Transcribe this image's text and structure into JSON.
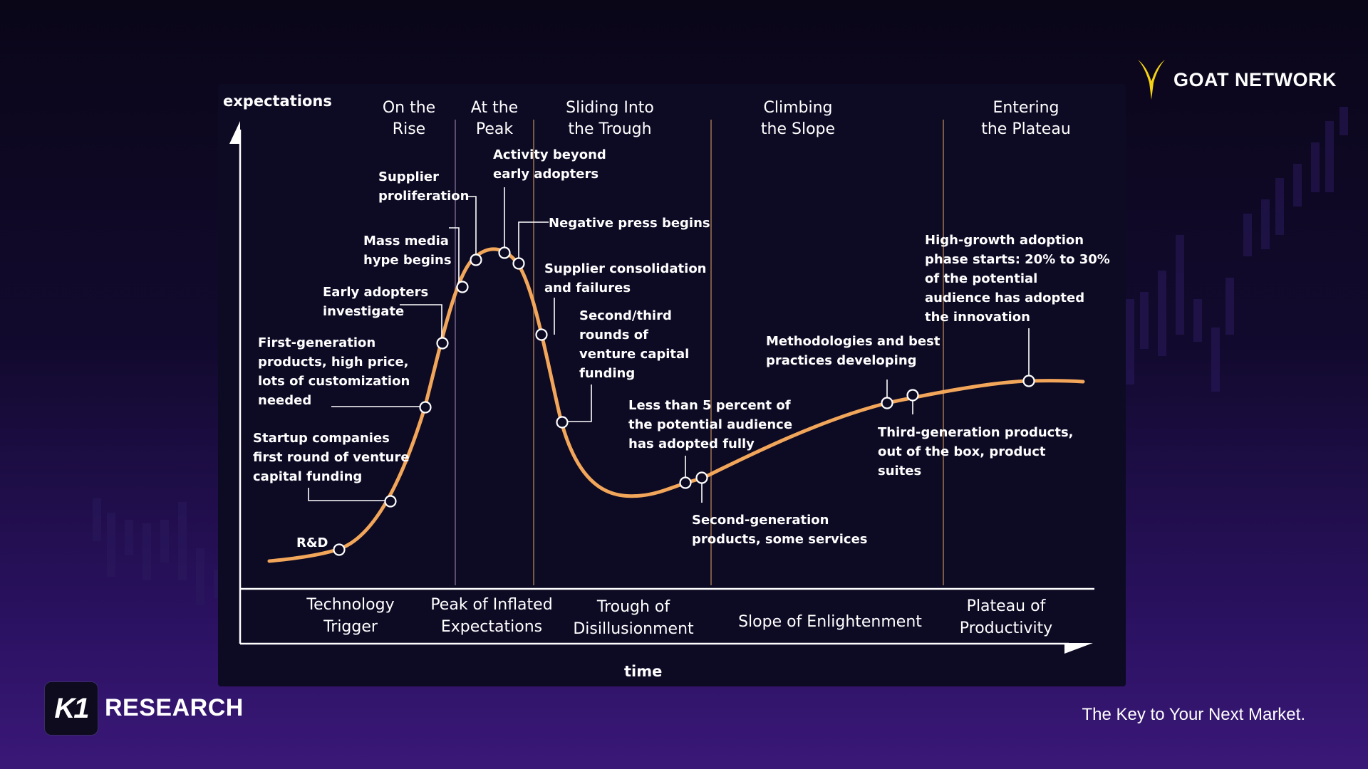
{
  "colors": {
    "curve": "#f2a65a",
    "phase_divider": "#7a5a45",
    "background_top": "#0a0618",
    "background_bottom": "#3a1878",
    "accent_logo": "#f5d313"
  },
  "brand": {
    "name": "GOAT NETWORK",
    "logo_icon": "goat-horns-icon"
  },
  "footer": {
    "badge_text": "K1",
    "name": "RESEARCH",
    "tagline": "The Key to Your Next Market."
  },
  "diagram": {
    "y_axis_label": "expectations",
    "x_axis_label": "time",
    "phase_titles": [
      [
        "On the",
        "Rise"
      ],
      [
        "At the",
        "Peak"
      ],
      [
        "Sliding Into",
        "the Trough"
      ],
      [
        "Climbing",
        "the Slope"
      ],
      [
        "Entering",
        "the Plateau"
      ]
    ],
    "bottom_phases": [
      [
        "Technology",
        "Trigger"
      ],
      [
        "Peak of Inflated",
        "Expectations"
      ],
      [
        "Trough of",
        "Disillusionment"
      ],
      [
        "Slope of Enlightenment"
      ],
      [
        "Plateau of",
        "Productivity"
      ]
    ],
    "annotations": [
      {
        "id": "rnd",
        "lines": [
          "R&D"
        ]
      },
      {
        "id": "startup",
        "lines": [
          "Startup companies",
          "first round of venture",
          "capital funding"
        ]
      },
      {
        "id": "first-gen",
        "lines": [
          "First-generation",
          "products, high price,",
          "lots of customization",
          "needed"
        ]
      },
      {
        "id": "early-adopters",
        "lines": [
          "Early adopters",
          "investigate"
        ]
      },
      {
        "id": "mass-media",
        "lines": [
          "Mass media",
          "hype begins"
        ]
      },
      {
        "id": "supplier-prolif",
        "lines": [
          "Supplier",
          "proliferation"
        ]
      },
      {
        "id": "activity-beyond",
        "lines": [
          "Activity beyond",
          "early adopters"
        ]
      },
      {
        "id": "negative-press",
        "lines": [
          "Negative press begins"
        ]
      },
      {
        "id": "supplier-consol",
        "lines": [
          "Supplier consolidation",
          "and failures"
        ]
      },
      {
        "id": "second-third",
        "lines": [
          "Second/third",
          "rounds of",
          "venture capital",
          "funding"
        ]
      },
      {
        "id": "less-than-5",
        "lines": [
          "Less than 5 percent of",
          "the potential audience",
          "has adopted fully"
        ]
      },
      {
        "id": "second-gen",
        "lines": [
          "Second-generation",
          "products, some services"
        ]
      },
      {
        "id": "methodologies",
        "lines": [
          "Methodologies and best",
          "practices developing"
        ]
      },
      {
        "id": "third-gen",
        "lines": [
          "Third-generation products,",
          "out of the box, product",
          "suites"
        ]
      },
      {
        "id": "high-growth",
        "lines": [
          "High-growth adoption",
          "phase starts: 20% to 30%",
          "of the potential",
          "audience has adopted",
          "the innovation"
        ]
      }
    ]
  }
}
